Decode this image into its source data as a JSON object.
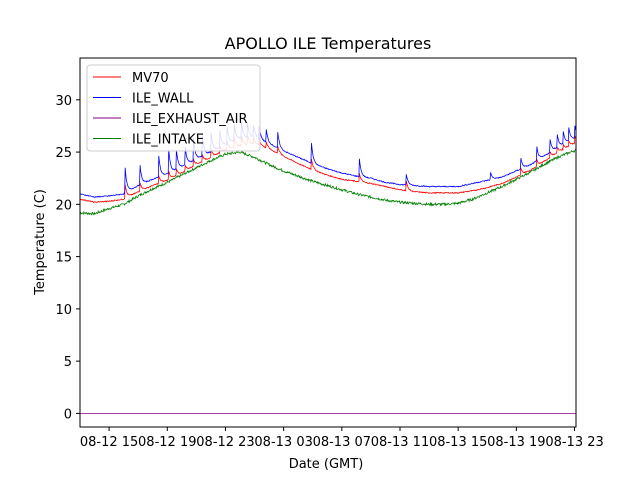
{
  "chart_data": {
    "type": "line",
    "title": "APOLLO ILE Temperatures",
    "xlabel": "Date (GMT)",
    "ylabel": "Temperature (C)",
    "xlim": [
      13.0,
      47.1
    ],
    "ylim": [
      -1.3,
      34.0
    ],
    "x_unit": "hours since 08-12 00:00 GMT",
    "xticks": [
      {
        "value": 15,
        "label": "08-12 15"
      },
      {
        "value": 19,
        "label": "08-12 19"
      },
      {
        "value": 23,
        "label": "08-12 23"
      },
      {
        "value": 27,
        "label": "08-13 03"
      },
      {
        "value": 31,
        "label": "08-13 07"
      },
      {
        "value": 35,
        "label": "08-13 11"
      },
      {
        "value": 39,
        "label": "08-13 15"
      },
      {
        "value": 43,
        "label": "08-13 19"
      },
      {
        "value": 47,
        "label": "08-13 23"
      }
    ],
    "yticks": [
      {
        "value": 0,
        "label": "0"
      },
      {
        "value": 5,
        "label": "5"
      },
      {
        "value": 10,
        "label": "10"
      },
      {
        "value": 15,
        "label": "15"
      },
      {
        "value": 20,
        "label": "20"
      },
      {
        "value": 25,
        "label": "25"
      },
      {
        "value": 30,
        "label": "30"
      }
    ],
    "legend_position": "upper-left",
    "series": [
      {
        "name": "MV70",
        "color": "#ff0000",
        "x": [
          13.0,
          14.0,
          15.0,
          16.0,
          17.0,
          18.0,
          19.0,
          20.0,
          21.0,
          22.0,
          23.0,
          24.0,
          25.0,
          26.0,
          27.0,
          28.0,
          29.0,
          30.0,
          31.0,
          32.0,
          33.0,
          34.0,
          35.0,
          36.0,
          37.0,
          38.0,
          39.0,
          40.0,
          41.0,
          42.0,
          43.0,
          44.0,
          45.0,
          46.0,
          47.1
        ],
        "y": [
          20.5,
          20.2,
          20.3,
          20.5,
          21.2,
          21.8,
          22.3,
          23.0,
          23.8,
          24.5,
          25.2,
          25.6,
          25.8,
          25.3,
          24.6,
          23.9,
          23.3,
          22.8,
          22.4,
          22.2,
          22.0,
          21.7,
          21.4,
          21.2,
          21.1,
          21.1,
          21.1,
          21.3,
          21.6,
          22.0,
          22.6,
          23.3,
          24.2,
          25.1,
          25.9
        ]
      },
      {
        "name": "ILE_WALL",
        "color": "#0000ff",
        "x": [
          13.0,
          14.0,
          15.0,
          16.0,
          17.0,
          18.0,
          19.0,
          20.0,
          21.0,
          22.0,
          23.0,
          24.0,
          25.0,
          26.0,
          27.0,
          28.0,
          29.0,
          30.0,
          31.0,
          32.0,
          33.0,
          34.0,
          35.0,
          36.0,
          37.0,
          38.0,
          39.0,
          40.0,
          41.0,
          42.0,
          43.0,
          44.0,
          45.0,
          46.0,
          47.1
        ],
        "y": [
          21.0,
          20.7,
          20.8,
          21.0,
          21.8,
          22.4,
          22.9,
          23.6,
          24.3,
          25.0,
          25.7,
          26.3,
          26.4,
          25.8,
          25.1,
          24.5,
          23.9,
          23.4,
          23.0,
          22.7,
          22.5,
          22.1,
          21.9,
          21.8,
          21.7,
          21.7,
          21.7,
          22.0,
          22.3,
          22.6,
          23.2,
          23.8,
          24.7,
          25.6,
          26.4
        ]
      },
      {
        "name": "ILE_EXHAUST_AIR",
        "color": "#800080",
        "x": [
          13.0,
          47.1
        ],
        "y": [
          0.0,
          0.0
        ]
      },
      {
        "name": "ILE_INTAKE",
        "color": "#008000",
        "x": [
          13.0,
          14.0,
          15.0,
          16.0,
          17.0,
          18.0,
          19.0,
          20.0,
          21.0,
          22.0,
          23.0,
          24.0,
          25.0,
          26.0,
          27.0,
          28.0,
          29.0,
          30.0,
          31.0,
          32.0,
          33.0,
          34.0,
          35.0,
          36.0,
          37.0,
          38.0,
          39.0,
          40.0,
          41.0,
          42.0,
          43.0,
          44.0,
          45.0,
          46.0,
          47.1
        ],
        "y": [
          19.2,
          19.1,
          19.6,
          20.0,
          20.8,
          21.5,
          22.1,
          22.8,
          23.5,
          24.2,
          24.8,
          25.0,
          24.5,
          23.8,
          23.2,
          22.7,
          22.2,
          21.8,
          21.4,
          21.0,
          20.7,
          20.4,
          20.2,
          20.1,
          20.0,
          20.0,
          20.1,
          20.5,
          21.1,
          21.7,
          22.4,
          23.1,
          23.9,
          24.6,
          25.2
        ]
      }
    ],
    "spikes": [
      {
        "series": "MV70",
        "x": [
          16.1,
          17.1,
          18.4,
          19.1,
          19.6,
          20.2,
          20.8,
          21.4,
          22.0,
          22.6,
          23.1,
          23.6,
          24.1,
          24.5,
          24.9,
          25.3,
          25.8,
          26.6,
          28.9,
          32.2,
          35.4,
          41.2,
          43.3,
          44.4,
          45.3,
          45.8,
          46.2,
          46.6,
          47.0
        ],
        "peak": [
          22.0,
          22.3,
          22.8,
          23.2,
          23.5,
          23.9,
          24.4,
          24.8,
          25.3,
          25.7,
          26.1,
          26.4,
          26.6,
          26.7,
          26.6,
          26.4,
          26.0,
          25.6,
          24.5,
          23.0,
          22.5,
          21.7,
          23.5,
          24.3,
          25.1,
          25.5,
          25.8,
          26.1,
          26.6
        ]
      },
      {
        "series": "ILE_WALL",
        "x": [
          16.1,
          17.1,
          18.4,
          19.1,
          19.6,
          20.2,
          20.8,
          21.4,
          22.0,
          22.6,
          23.1,
          23.6,
          24.1,
          24.5,
          24.9,
          25.3,
          25.8,
          26.6,
          28.9,
          32.2,
          35.4,
          41.2,
          43.3,
          44.4,
          45.3,
          45.8,
          46.2,
          46.6,
          47.0
        ],
        "peak": [
          23.6,
          24.2,
          25.0,
          25.3,
          25.7,
          26.0,
          26.4,
          26.8,
          27.1,
          27.4,
          27.6,
          27.8,
          27.9,
          28.0,
          27.9,
          27.6,
          27.2,
          26.9,
          26.1,
          24.5,
          23.2,
          23.2,
          24.5,
          25.6,
          26.4,
          26.8,
          27.2,
          27.4,
          27.7
        ]
      }
    ]
  }
}
